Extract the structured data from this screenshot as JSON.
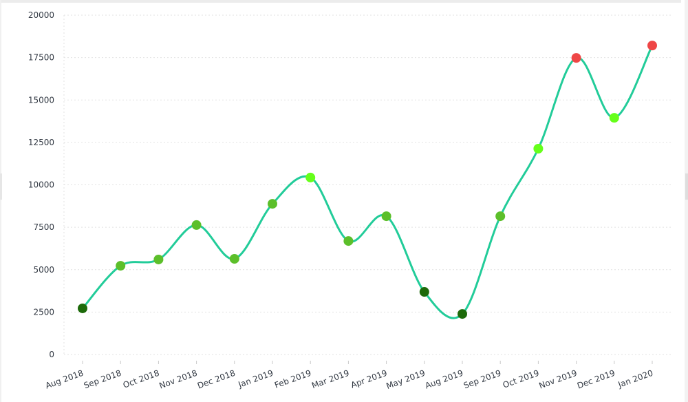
{
  "chart_data": {
    "type": "line",
    "title": "",
    "xlabel": "",
    "ylabel": "",
    "ylim": [
      0,
      20000
    ],
    "yticks": [
      0,
      2500,
      5000,
      7500,
      10000,
      12500,
      15000,
      17500,
      20000
    ],
    "grid": true,
    "legend": null,
    "smooth": true,
    "line_color": "#22cc99",
    "categories": [
      "Aug 2018",
      "Sep 2018",
      "Oct 2018",
      "Nov 2018",
      "Dec 2018",
      "Jan 2019",
      "Feb 2019",
      "Mar 2019",
      "Apr 2019",
      "May 2019",
      "Aug 2019",
      "Sep 2019",
      "Oct 2019",
      "Nov 2019",
      "Dec 2019",
      "Jan 2020"
    ],
    "values": [
      2720,
      5230,
      5600,
      7630,
      5640,
      8880,
      10430,
      6690,
      8150,
      3690,
      2390,
      8150,
      12130,
      17480,
      13950,
      18210
    ],
    "point_colors": [
      "#1d6a0a",
      "#5cbf2a",
      "#5cbf2a",
      "#5cbf2a",
      "#5cbf2a",
      "#5cbf2a",
      "#66ff1a",
      "#5cbf2a",
      "#5cbf2a",
      "#1d6a0a",
      "#1d6a0a",
      "#5cbf2a",
      "#66ff1a",
      "#ef4646",
      "#66ff1a",
      "#ef4646"
    ]
  }
}
